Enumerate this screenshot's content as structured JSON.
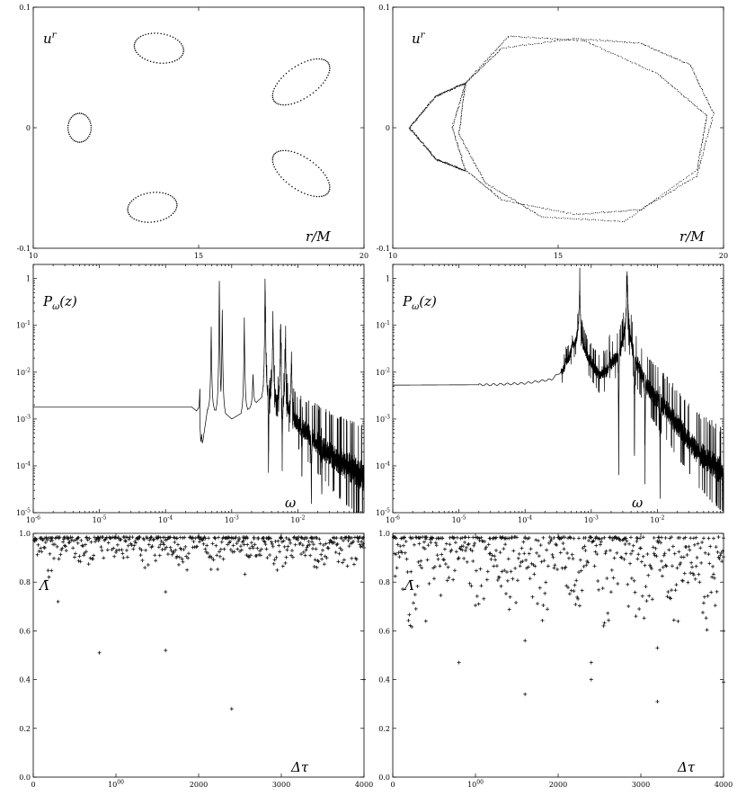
{
  "chart_data": [
    {
      "id": "poincare-left",
      "type": "scatter",
      "xlim": [
        10,
        20
      ],
      "ylim": [
        -0.1,
        0.1
      ],
      "xticks": [
        10,
        15,
        20
      ],
      "yticks": [
        -0.1,
        0,
        0.1
      ],
      "xtick_labels": [
        "10",
        "15",
        "20"
      ],
      "ytick_labels": [
        "-0.1",
        "0",
        "0.1"
      ],
      "xlabel": "r/M",
      "ylabel": "u^r",
      "ylabel_base": "u",
      "ylabel_sup": "r",
      "series": [
        {
          "kind": "ellipse",
          "cx": 11.4,
          "cy": 0.0,
          "rx": 0.35,
          "ry": 0.012,
          "rot": 0,
          "n": 40
        },
        {
          "kind": "ellipse",
          "cx": 13.8,
          "cy": 0.066,
          "rx": 0.75,
          "ry": 0.007,
          "rot": 8,
          "n": 48
        },
        {
          "kind": "ellipse",
          "cx": 13.6,
          "cy": -0.066,
          "rx": 0.75,
          "ry": 0.007,
          "rot": -8,
          "n": 48
        },
        {
          "kind": "ellipse",
          "cx": 18.1,
          "cy": 0.038,
          "rx": 1.0,
          "ry": 0.008,
          "rot": -35,
          "n": 56
        },
        {
          "kind": "ellipse",
          "cx": 18.1,
          "cy": -0.038,
          "rx": 1.0,
          "ry": 0.008,
          "rot": 35,
          "n": 56
        }
      ]
    },
    {
      "id": "poincare-right",
      "type": "scatter",
      "xlim": [
        10,
        20
      ],
      "ylim": [
        -0.1,
        0.1
      ],
      "xticks": [
        10,
        15,
        20
      ],
      "yticks": [
        -0.1,
        0,
        0.1
      ],
      "xtick_labels": [
        "10",
        "15",
        "20"
      ],
      "ytick_labels": [
        "-0.1",
        "0",
        "0.1"
      ],
      "xlabel": "r/M",
      "ylabel": "u^r",
      "ylabel_base": "u",
      "ylabel_sup": "r",
      "series": [
        {
          "kind": "path",
          "n": 420,
          "jitter": 0.3,
          "points": [
            [
              12.2,
              0.037
            ],
            [
              13.3,
              0.066
            ],
            [
              15.5,
              0.074
            ],
            [
              17.5,
              0.07
            ],
            [
              19.0,
              0.052
            ],
            [
              19.7,
              0.012
            ],
            [
              19.2,
              -0.04
            ],
            [
              17.5,
              -0.068
            ],
            [
              15.5,
              -0.072
            ],
            [
              13.3,
              -0.06
            ],
            [
              12.2,
              -0.035
            ],
            [
              11.8,
              0.0
            ],
            [
              12.2,
              0.037
            ]
          ]
        },
        {
          "kind": "path",
          "n": 380,
          "jitter": 0.3,
          "points": [
            [
              12.2,
              0.037
            ],
            [
              13.5,
              0.076
            ],
            [
              15.8,
              0.072
            ],
            [
              18.0,
              0.045
            ],
            [
              19.5,
              0.01
            ],
            [
              19.2,
              -0.035
            ],
            [
              17.0,
              -0.078
            ],
            [
              14.5,
              -0.074
            ],
            [
              12.8,
              -0.046
            ],
            [
              12.0,
              -0.005
            ],
            [
              12.2,
              0.037
            ]
          ]
        },
        {
          "kind": "path",
          "n": 300,
          "jitter": 0.35,
          "points": [
            [
              12.2,
              0.037
            ],
            [
              11.3,
              0.026
            ],
            [
              10.5,
              0.0
            ],
            [
              11.3,
              -0.026
            ],
            [
              12.2,
              -0.036
            ]
          ]
        }
      ]
    },
    {
      "id": "power-left",
      "type": "line",
      "xscale": "log",
      "yscale": "log",
      "xlim": [
        1e-06,
        0.1
      ],
      "ylim": [
        1e-05,
        2
      ],
      "xticks": [
        1e-06,
        1e-05,
        0.0001,
        0.001,
        0.01
      ],
      "yticks": [
        1e-05,
        0.0001,
        0.001,
        0.01,
        0.1,
        1
      ],
      "xtick_labels": [
        "10-6",
        "10-5",
        "10-4",
        "10-3",
        "10-2"
      ],
      "ytick_labels": [
        "10-5",
        "10-4",
        "10-3",
        "10-2",
        "10-1",
        "1"
      ],
      "xlabel": "ω",
      "ylabel": "Pω(z)",
      "ylabel_base": "P",
      "ylabel_sub": "ω",
      "ylabel_rest": "(z)",
      "baseline": [
        [
          1e-06,
          0.0018
        ],
        [
          0.00025,
          0.0018
        ],
        [
          0.00031,
          0.0014
        ],
        [
          0.00036,
          0.00028
        ],
        [
          0.00043,
          0.0016
        ],
        [
          0.00073,
          0.0015
        ],
        [
          0.001,
          0.001
        ],
        [
          0.002,
          0.0018
        ],
        [
          0.0029,
          0.003
        ],
        [
          0.005,
          0.0025
        ],
        [
          0.01,
          0.00075
        ],
        [
          0.03,
          0.00017
        ],
        [
          0.1,
          5.5e-05
        ]
      ],
      "peaks": [
        [
          0.00033,
          0.005
        ],
        [
          0.00049,
          0.1
        ],
        [
          0.00065,
          1.2
        ],
        [
          0.00072,
          0.25
        ],
        [
          0.00155,
          0.15
        ],
        [
          0.0021,
          0.01
        ],
        [
          0.0032,
          1.5
        ],
        [
          0.0042,
          0.2
        ],
        [
          0.0055,
          0.12
        ],
        [
          0.0065,
          0.06
        ],
        [
          0.008,
          0.03
        ]
      ],
      "dips": [
        [
          0.00034,
          0.0003
        ],
        [
          0.0036,
          5e-05
        ],
        [
          0.0058,
          0.0001
        ],
        [
          0.0115,
          3e-05
        ],
        [
          0.016,
          1e-05
        ],
        [
          0.023,
          2e-05
        ]
      ],
      "noise": {
        "start": 0.003,
        "end": 0.1,
        "up": 0.9,
        "down": 0.6
      }
    },
    {
      "id": "power-right",
      "type": "line",
      "xscale": "log",
      "yscale": "log",
      "xlim": [
        1e-06,
        0.1
      ],
      "ylim": [
        1e-05,
        2
      ],
      "xticks": [
        1e-06,
        1e-05,
        0.0001,
        0.001,
        0.01
      ],
      "yticks": [
        1e-05,
        0.0001,
        0.001,
        0.01,
        0.1,
        1
      ],
      "xtick_labels": [
        "10-6",
        "10-5",
        "10-4",
        "10-3",
        "10-2"
      ],
      "ytick_labels": [
        "10-5",
        "10-4",
        "10-3",
        "10-2",
        "10-1",
        "1"
      ],
      "xlabel": "ω",
      "ylabel": "Pω(z)",
      "ylabel_base": "P",
      "ylabel_sub": "ω",
      "ylabel_rest": "(z)",
      "baseline": [
        [
          1e-06,
          0.0053
        ],
        [
          3e-05,
          0.0054
        ],
        [
          0.0001,
          0.0058
        ],
        [
          0.00025,
          0.007
        ],
        [
          0.0004,
          0.012
        ],
        [
          0.00065,
          0.07
        ],
        [
          0.0009,
          0.02
        ],
        [
          0.0013,
          0.009
        ],
        [
          0.0018,
          0.011
        ],
        [
          0.0028,
          0.03
        ],
        [
          0.0035,
          0.12
        ],
        [
          0.0045,
          0.02
        ],
        [
          0.007,
          0.005
        ],
        [
          0.015,
          0.0013
        ],
        [
          0.04,
          0.0002
        ],
        [
          0.1,
          7e-05
        ]
      ],
      "peaks": [
        [
          0.00067,
          0.9
        ],
        [
          0.0035,
          1.5
        ],
        [
          0.0019,
          0.025
        ],
        [
          0.00041,
          0.02
        ],
        [
          0.00052,
          0.05
        ]
      ],
      "dips": [
        [
          0.0026,
          3e-05
        ],
        [
          0.0045,
          5e-05
        ],
        [
          0.0065,
          8e-05
        ],
        [
          0.011,
          3e-05
        ]
      ],
      "noise": {
        "start": 0.00035,
        "end": 0.1,
        "up": 0.7,
        "down": 0.55
      }
    },
    {
      "id": "lambda-left",
      "type": "scatter",
      "xlim": [
        0,
        4000
      ],
      "ylim": [
        0,
        1
      ],
      "xticks": [
        0,
        1000,
        2000,
        3000,
        4000
      ],
      "yticks": [
        0,
        0.2,
        0.4,
        0.6,
        0.8,
        1
      ],
      "xtick_labels": [
        "0",
        "1000",
        "2000",
        "3000",
        "4000"
      ],
      "ytick_labels": [
        "0.0",
        "0.2",
        "0.4",
        "0.6",
        "0.8",
        "1.0"
      ],
      "xlabel": "Δτ",
      "ylabel": "Λ̄",
      "n_points": 400,
      "min_band": 0.8,
      "outliers": [
        [
          300,
          0.72
        ],
        [
          800,
          0.51
        ],
        [
          1600,
          0.52
        ],
        [
          1600,
          0.76
        ],
        [
          2400,
          0.28
        ],
        [
          4000,
          0.4
        ]
      ]
    },
    {
      "id": "lambda-right",
      "type": "scatter",
      "xlim": [
        0,
        4000
      ],
      "ylim": [
        0,
        1
      ],
      "xticks": [
        0,
        1000,
        2000,
        3000,
        4000
      ],
      "yticks": [
        0,
        0.2,
        0.4,
        0.6,
        0.8,
        1
      ],
      "xtick_labels": [
        "0",
        "1000",
        "2000",
        "3000",
        "4000"
      ],
      "ytick_labels": [
        "0.0",
        "0.2",
        "0.4",
        "0.6",
        "0.8",
        "1.0"
      ],
      "xlabel": "Δτ",
      "ylabel": "Λ̄",
      "n_points": 400,
      "min_band": 0.55,
      "outliers": [
        [
          400,
          0.64
        ],
        [
          800,
          0.47
        ],
        [
          1600,
          0.56
        ],
        [
          1600,
          0.34
        ],
        [
          2400,
          0.47
        ],
        [
          2400,
          0.4
        ],
        [
          3200,
          0.31
        ],
        [
          3200,
          0.53
        ],
        [
          4000,
          0.39
        ],
        [
          4000,
          0.6
        ]
      ]
    }
  ]
}
